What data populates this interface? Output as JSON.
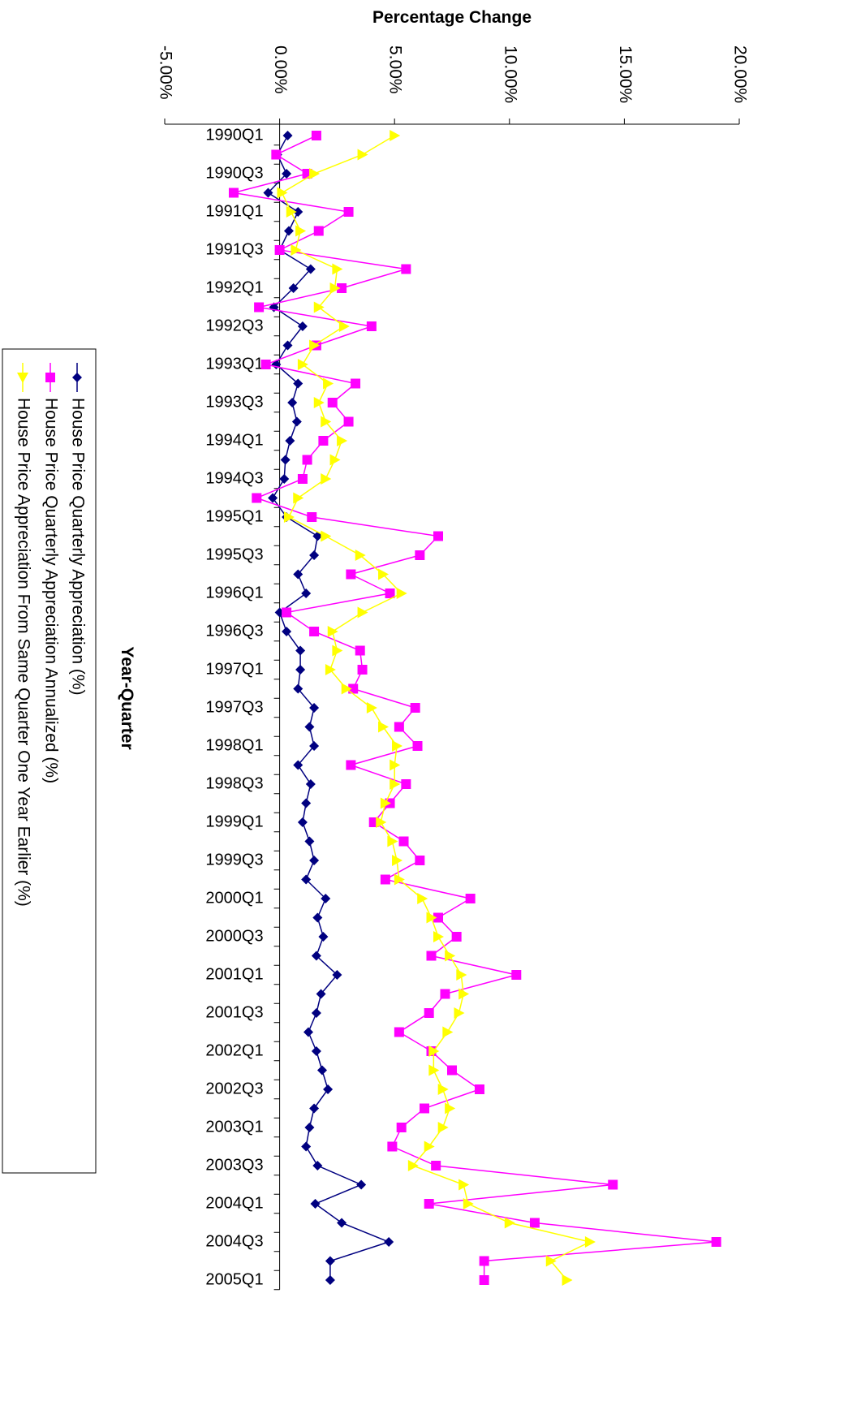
{
  "chart_data": {
    "type": "line",
    "title": "Percentage Change",
    "x_axis_label": "Year-Quarter",
    "categories": [
      "1990Q1",
      null,
      "1990Q3",
      null,
      "1991Q1",
      null,
      "1991Q3",
      null,
      "1992Q1",
      null,
      "1992Q3",
      null,
      "1993Q1",
      null,
      "1993Q3",
      null,
      "1994Q1",
      null,
      "1994Q3",
      null,
      "1995Q1",
      null,
      "1995Q3",
      null,
      "1996Q1",
      null,
      "1996Q3",
      null,
      "1997Q1",
      null,
      "1997Q3",
      null,
      "1998Q1",
      null,
      "1998Q3",
      null,
      "1999Q1",
      null,
      "1999Q3",
      null,
      "2000Q1",
      null,
      "2000Q3",
      null,
      "2001Q1",
      null,
      "2001Q3",
      null,
      "2002Q1",
      null,
      "2002Q3",
      null,
      "2003Q1",
      null,
      "2003Q3",
      null,
      "2004Q1",
      null,
      "2004Q3",
      null,
      "2005Q1"
    ],
    "series": [
      {
        "name": "House Price Quarterly Appreciation (%)",
        "color": "#000080",
        "marker": "diamond",
        "values": [
          0.35,
          -0.1,
          0.3,
          -0.5,
          0.8,
          0.4,
          0.0,
          1.35,
          0.6,
          -0.25,
          1.0,
          0.35,
          -0.15,
          0.8,
          0.55,
          0.75,
          0.45,
          0.25,
          0.2,
          -0.3,
          0.3,
          1.65,
          1.5,
          0.8,
          1.15,
          0.0,
          0.3,
          0.9,
          0.9,
          0.8,
          1.5,
          1.3,
          1.5,
          0.8,
          1.35,
          1.15,
          1.0,
          1.3,
          1.5,
          1.15,
          2.0,
          1.65,
          1.9,
          1.6,
          2.5,
          1.8,
          1.6,
          1.25,
          1.6,
          1.85,
          2.1,
          1.5,
          1.3,
          1.15,
          1.65,
          3.55,
          1.55,
          2.7,
          4.75,
          2.2,
          2.2
        ]
      },
      {
        "name": "House Price Quarterly Appreciation Annualized (%)",
        "color": "#ff00ff",
        "marker": "square",
        "values": [
          1.6,
          -0.15,
          1.2,
          -2.0,
          3.0,
          1.7,
          0.0,
          5.5,
          2.7,
          -0.9,
          4.0,
          1.6,
          -0.6,
          3.3,
          2.3,
          3.0,
          1.9,
          1.2,
          1.0,
          -1.0,
          1.4,
          6.9,
          6.1,
          3.1,
          4.8,
          0.3,
          1.5,
          3.5,
          3.6,
          3.2,
          5.9,
          5.2,
          6.0,
          3.1,
          5.5,
          4.8,
          4.1,
          5.4,
          6.1,
          4.6,
          8.3,
          6.9,
          7.7,
          6.6,
          10.3,
          7.2,
          6.5,
          5.2,
          6.6,
          7.5,
          8.7,
          6.3,
          5.3,
          4.9,
          6.8,
          14.5,
          6.5,
          11.1,
          19.0,
          8.9,
          8.9
        ]
      },
      {
        "name": "House Price Appreciation From Same Quarter One Year Earlier (%)",
        "color": "#ffff00",
        "marker": "triangle",
        "values": [
          5.0,
          3.6,
          1.5,
          0.1,
          0.5,
          0.9,
          0.7,
          2.5,
          2.4,
          1.7,
          2.8,
          1.5,
          1.0,
          2.1,
          1.7,
          2.0,
          2.7,
          2.4,
          2.0,
          0.8,
          0.4,
          2.0,
          3.5,
          4.5,
          5.3,
          3.6,
          2.3,
          2.5,
          2.2,
          2.9,
          4.0,
          4.5,
          5.1,
          5.0,
          5.0,
          4.6,
          4.4,
          4.9,
          5.1,
          5.2,
          6.2,
          6.6,
          6.9,
          7.4,
          7.9,
          8.0,
          7.8,
          7.3,
          6.7,
          6.7,
          7.1,
          7.4,
          7.1,
          6.5,
          5.8,
          8.0,
          8.2,
          10.0,
          13.5,
          11.8,
          12.5
        ]
      }
    ],
    "ylim": [
      -5,
      20
    ],
    "yticks": [
      {
        "value": -5,
        "label": "-5.00%"
      },
      {
        "value": 0,
        "label": "0.00%"
      },
      {
        "value": 5,
        "label": "5.00%"
      },
      {
        "value": 10,
        "label": "10.00%"
      },
      {
        "value": 15,
        "label": "15.00%"
      },
      {
        "value": 20,
        "label": "20.00%"
      }
    ],
    "grid": false,
    "legend": "left"
  }
}
